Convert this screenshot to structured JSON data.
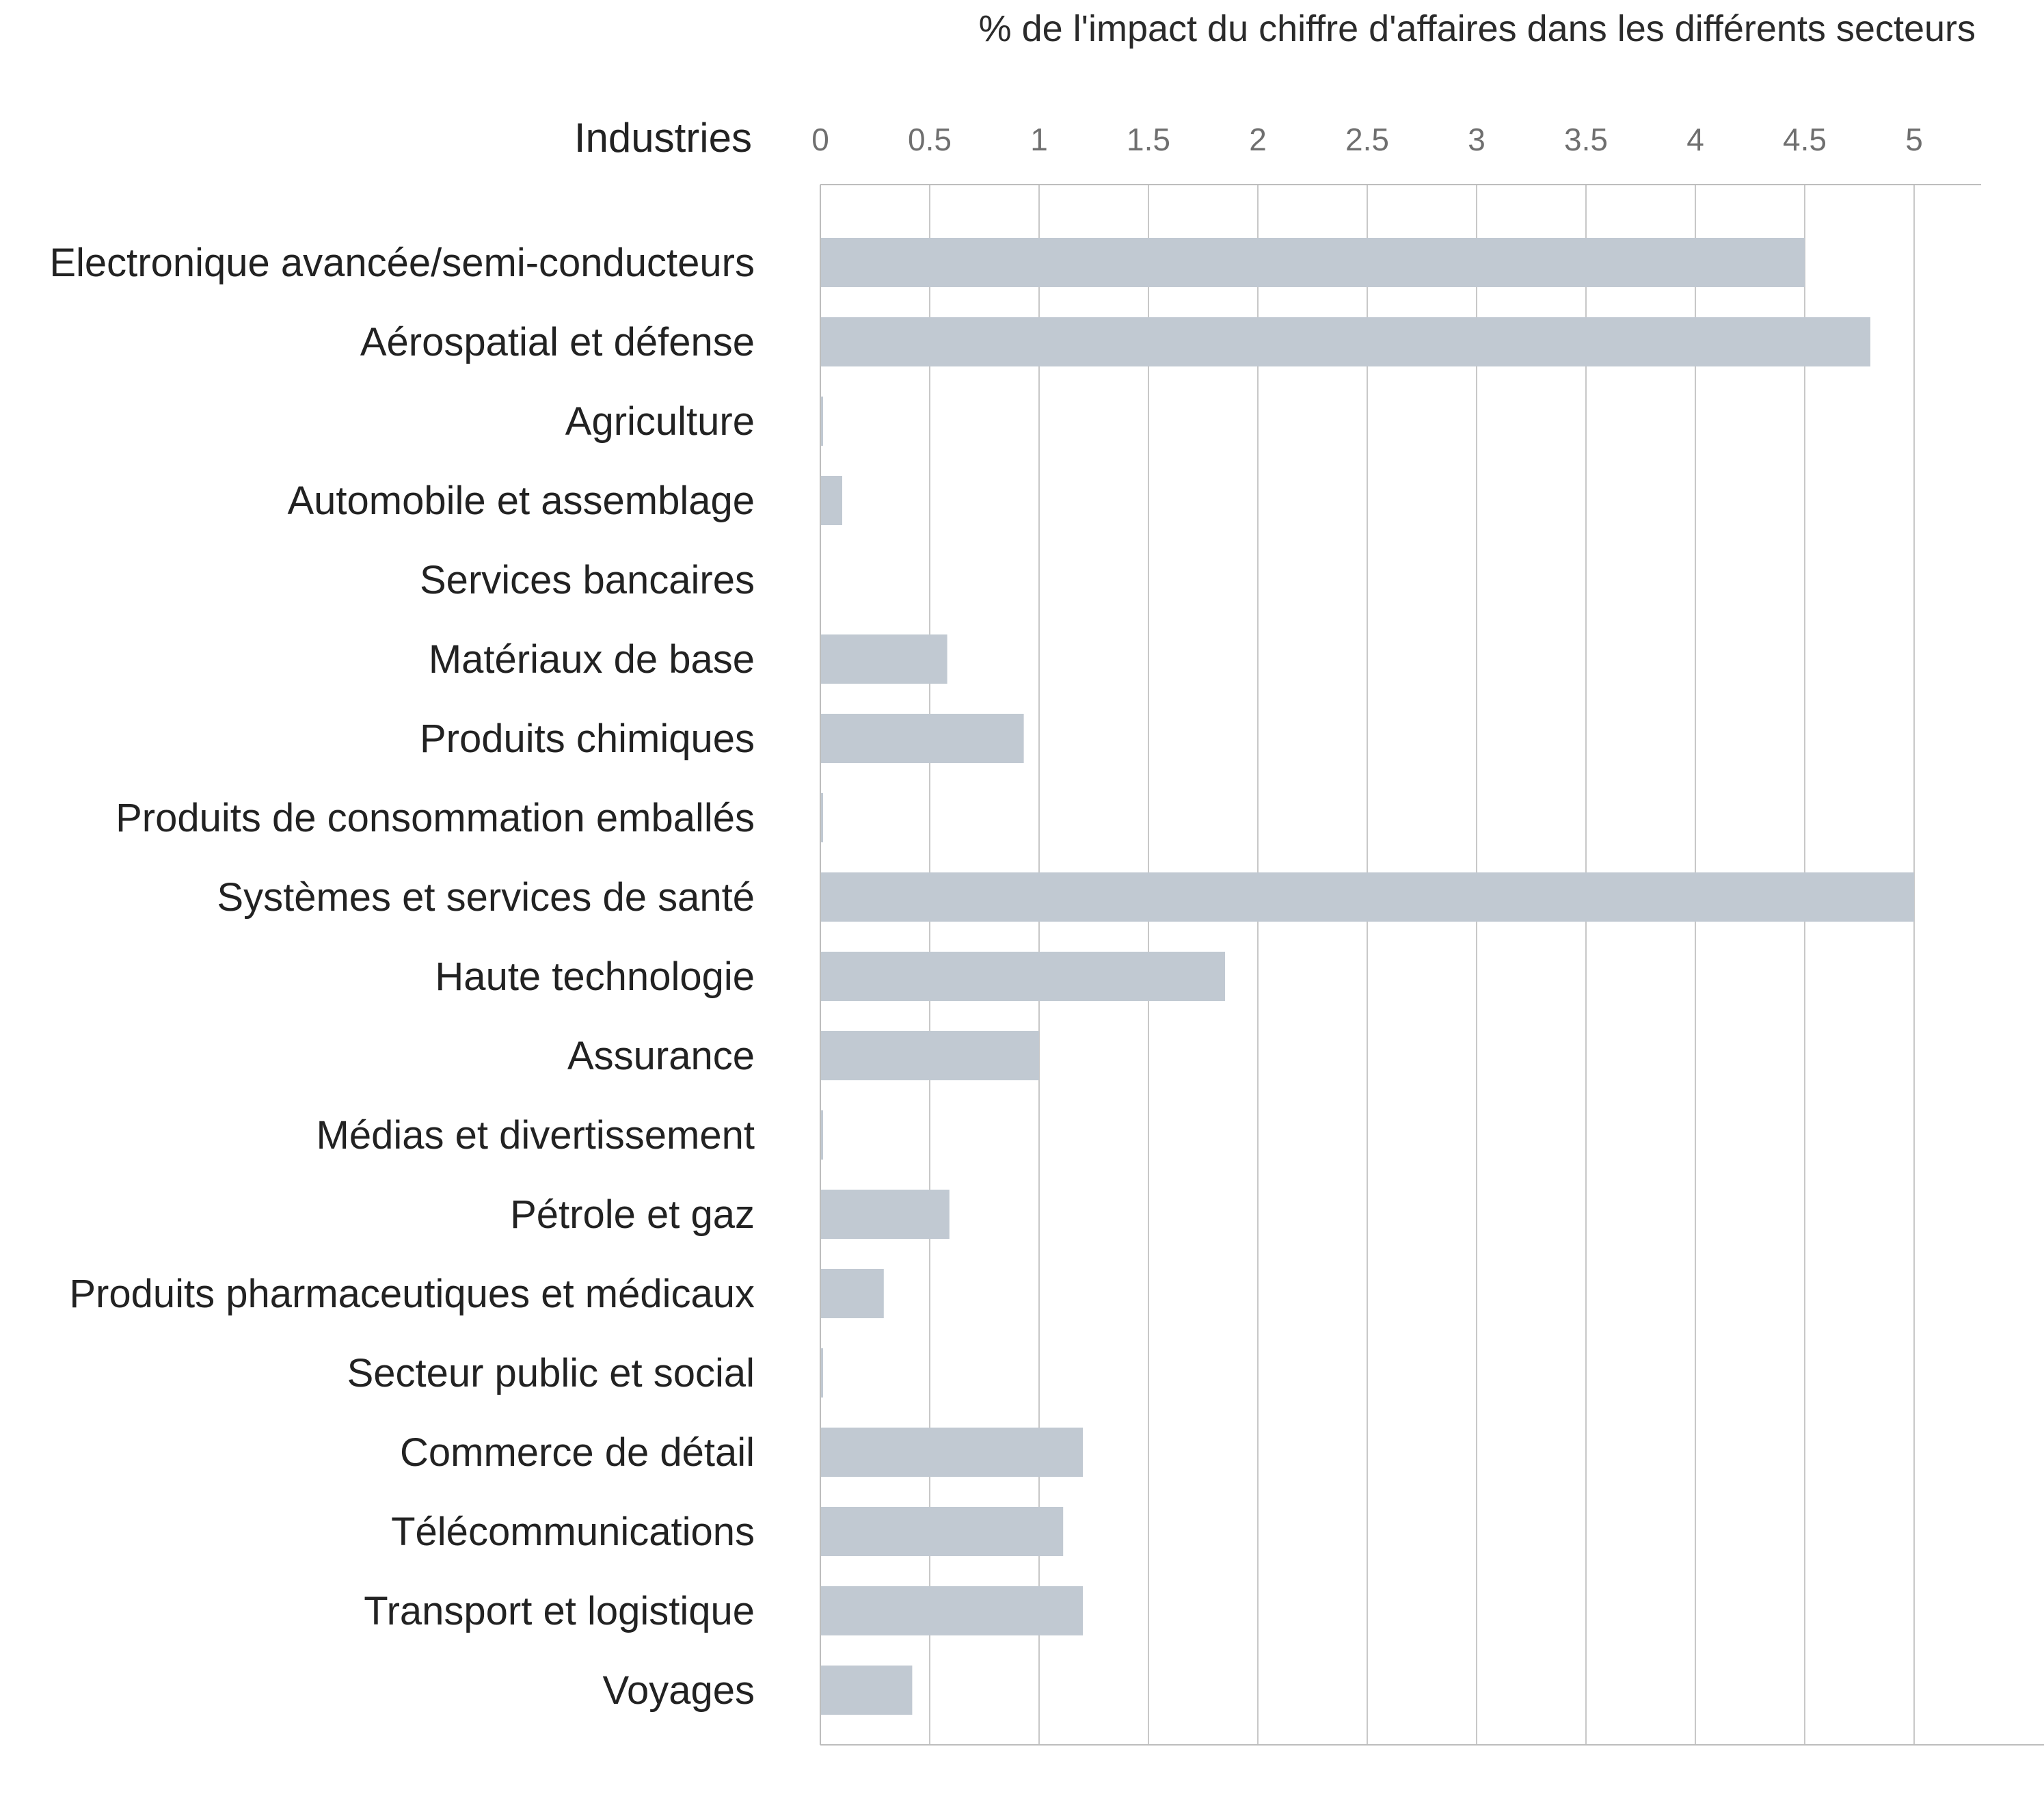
{
  "chart_data": {
    "type": "bar",
    "orientation": "horizontal",
    "title": "% de l'impact du chiffre d'affaires dans les différents secteurs",
    "ylabel": "Industries",
    "xlabel": "",
    "xlim": [
      0,
      5.3
    ],
    "x_ticks": [
      "0",
      "0.5",
      "1",
      "1.5",
      "2",
      "2.5",
      "3",
      "3.5",
      "4",
      "4.5",
      "5"
    ],
    "grid": true,
    "bar_color": "#c1c9d2",
    "grid_color": "#c8c8c8",
    "categories": [
      "Electronique avancée/semi-conducteurs",
      "Aérospatial et défense",
      "Agriculture",
      "Automobile et assemblage",
      "Services bancaires",
      "Matériaux de base",
      "Produits chimiques",
      "Produits de consommation emballés",
      "Systèmes et services de santé",
      "Haute technologie",
      "Assurance",
      "Médias et divertissement",
      "Pétrole et gaz",
      "Produits pharmaceutiques et médicaux",
      "Secteur public et social",
      "Commerce de détail",
      "Télécommunications",
      "Transport et logistique",
      "Voyages"
    ],
    "values": [
      4.5,
      4.8,
      0.01,
      0.1,
      0,
      0.58,
      0.93,
      0.01,
      5.0,
      1.85,
      1.0,
      0.01,
      0.59,
      0.29,
      0.01,
      1.2,
      1.11,
      1.2,
      0.42
    ]
  }
}
